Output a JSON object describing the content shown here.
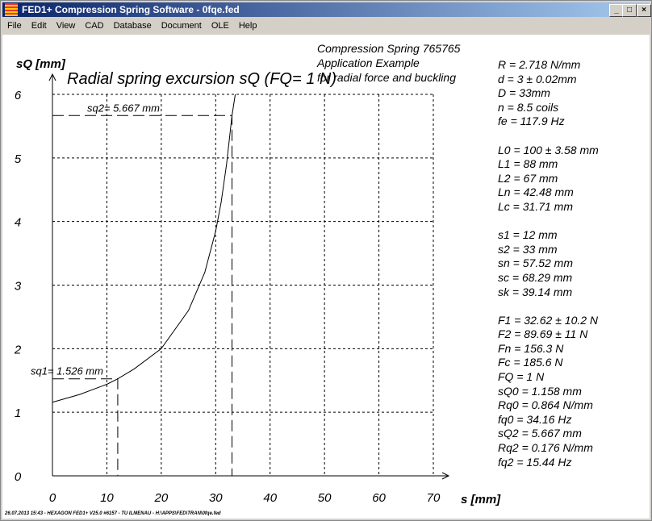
{
  "window": {
    "title": "FED1+  Compression Spring Software  -  0fqe.fed",
    "buttons": [
      "_",
      "□",
      "×"
    ]
  },
  "menu": [
    "File",
    "Edit",
    "View",
    "CAD",
    "Database",
    "Document",
    "OLE",
    "Help"
  ],
  "header": [
    "Compression Spring  765765",
    "Application Example",
    "for radial force and buckling"
  ],
  "params": [
    "R  = 2.718 N/mm",
    "d  = 3 ± 0.02mm",
    "D = 33mm",
    "n  = 8.5 coils",
    "fe = 117.9 Hz",
    "",
    "L0 = 100 ± 3.58 mm",
    "L1 = 88 mm",
    "L2 = 67 mm",
    "Ln = 42.48 mm",
    "Lc = 31.71 mm",
    "",
    "s1 = 12 mm",
    "s2 = 33 mm",
    "sn = 57.52 mm",
    "sc = 68.29 mm",
    "sk = 39.14 mm",
    "",
    "F1 = 32.62 ± 10.2 N",
    "F2 = 89.69 ± 11 N",
    "Fn = 156.3 N",
    "Fc = 185.6 N",
    "FQ = 1 N",
    "sQ0 = 1.158 mm",
    "Rq0 = 0.864 N/mm",
    "fq0 = 34.16 Hz",
    "sQ2 = 5.667 mm",
    "Rq2 = 0.176 N/mm",
    "fq2 = 15.44 Hz"
  ],
  "footer": "26.07.2013 15:43 - HEXAGON FED1+ V25.0 #6157 - TU ILMENAU - H:\\APPS\\FED\\TRAN\\0fqe.fed",
  "chart_data": {
    "type": "line",
    "title": "Radial spring excursion sQ  (FQ= 1 N)",
    "xlabel": "s [mm]",
    "ylabel": "sQ [mm]",
    "xlim": [
      0,
      70
    ],
    "ylim": [
      0,
      6
    ],
    "xticks": [
      0,
      10,
      20,
      30,
      40,
      50,
      60,
      70
    ],
    "yticks": [
      0,
      1,
      2,
      3,
      4,
      5,
      6
    ],
    "grid": true,
    "series": [
      {
        "name": "sQ",
        "x": [
          0,
          5,
          10,
          12,
          15,
          20,
          25,
          28,
          30,
          31,
          32,
          33,
          33.6
        ],
        "y": [
          1.158,
          1.28,
          1.44,
          1.526,
          1.68,
          2.0,
          2.6,
          3.2,
          3.85,
          4.3,
          4.9,
          5.667,
          6.0
        ]
      }
    ],
    "annotations": [
      {
        "text": "sq1= 1.526 mm",
        "x": 12,
        "y": 1.526
      },
      {
        "text": "sq2= 5.667 mm",
        "x": 33,
        "y": 5.667
      }
    ]
  }
}
